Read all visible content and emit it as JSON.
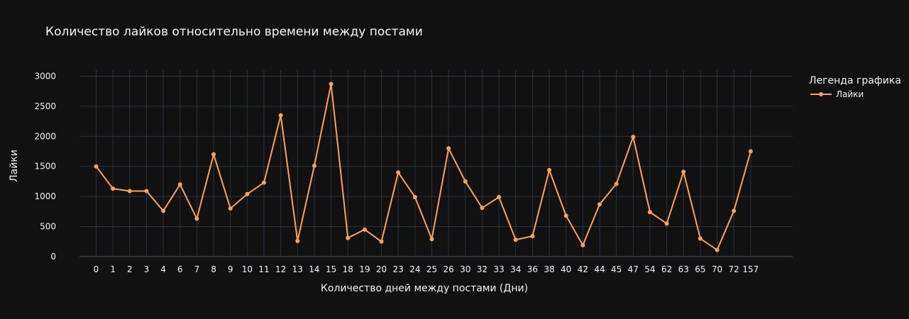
{
  "colors": {
    "background": "#111111",
    "grid": "#283442",
    "text": "#f2f5fa",
    "series": "#ffa15a"
  },
  "chart_data": {
    "type": "line",
    "title": "Количество лайков относительно времени между постами",
    "xlabel": "Количество дней между постами (Дни)",
    "ylabel": "Лайки",
    "x_axis_type": "category",
    "ylim": [
      0,
      3100
    ],
    "yticks": [
      0,
      500,
      1000,
      1500,
      2000,
      2500,
      3000
    ],
    "grid": true,
    "legend_placement": "right",
    "legend_title": "Легенда графика",
    "categories": [
      "0",
      "1",
      "2",
      "3",
      "4",
      "6",
      "7",
      "8",
      "9",
      "10",
      "11",
      "12",
      "13",
      "14",
      "15",
      "18",
      "19",
      "20",
      "23",
      "24",
      "25",
      "26",
      "30",
      "32",
      "33",
      "34",
      "36",
      "38",
      "40",
      "42",
      "44",
      "45",
      "47",
      "54",
      "62",
      "63",
      "65",
      "70",
      "72",
      "157"
    ],
    "series": [
      {
        "name": "Лайки",
        "values": [
          1500,
          1130,
          1090,
          1090,
          760,
          1200,
          630,
          1700,
          800,
          1040,
          1230,
          2350,
          260,
          1510,
          2870,
          310,
          450,
          250,
          1400,
          990,
          290,
          1800,
          1250,
          810,
          990,
          280,
          340,
          1440,
          680,
          190,
          870,
          1210,
          1990,
          740,
          550,
          1410,
          300,
          110,
          760,
          1750
        ]
      }
    ]
  }
}
